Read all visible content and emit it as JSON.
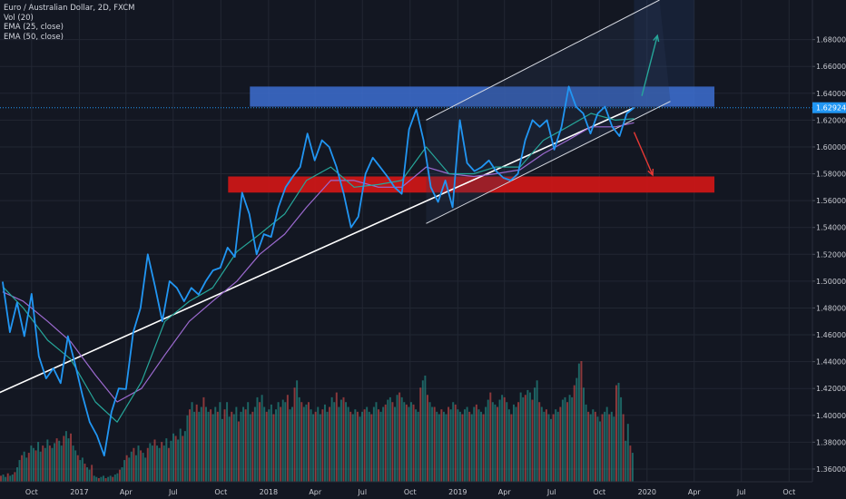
{
  "legend": {
    "symbol": "Euro / Australian Dollar, 2D, FXCM",
    "volume": "Vol (20)",
    "ema_fast": "EMA (25, close)",
    "ema_slow": "EMA (50, close)"
  },
  "last_price_label": "1.62924",
  "colors": {
    "background": "#131722",
    "price": "#2196f3",
    "ema_fast": "#26a69a",
    "ema_slow": "#9c6ad0",
    "trendline": "#ffffff",
    "resistance_zone": "#3d6fd1",
    "support_zone": "#d51616",
    "arrow_up": "#26a69a",
    "arrow_down": "#e53935",
    "vol_up": "#26a69a",
    "vol_down": "#ef5350",
    "axis_text": "#c8cad1"
  },
  "chart_data": {
    "type": "line",
    "title": "Euro / Australian Dollar, 2D, FXCM",
    "y_axis": {
      "ticks": [
        "1.68000",
        "1.66000",
        "1.64000",
        "1.62000",
        "1.60000",
        "1.58000",
        "1.56000",
        "1.54000",
        "1.52000",
        "1.50000",
        "1.48000",
        "1.46000",
        "1.44000",
        "1.42000",
        "1.40000",
        "1.38000",
        "1.36000"
      ],
      "range": [
        1.3505,
        1.7095
      ],
      "position": "right"
    },
    "x_axis": {
      "ticks": [
        "Oct",
        "2017",
        "Apr",
        "Jul",
        "Oct",
        "2018",
        "Apr",
        "Jul",
        "Oct",
        "2019",
        "Apr",
        "Jul",
        "Oct",
        "2020",
        "Apr",
        "Jul",
        "Oct"
      ],
      "range": [
        "2016-08-01",
        "2020-11-15"
      ]
    },
    "price_series": {
      "name": "EURAUD",
      "points": [
        [
          "2016-08-06",
          1.4996
        ],
        [
          "2016-08-20",
          1.462
        ],
        [
          "2016-09-03",
          1.484
        ],
        [
          "2016-09-17",
          1.459
        ],
        [
          "2016-10-01",
          1.4905
        ],
        [
          "2016-10-15",
          1.444
        ],
        [
          "2016-10-29",
          1.4275
        ],
        [
          "2016-11-12",
          1.435
        ],
        [
          "2016-11-26",
          1.424
        ],
        [
          "2016-12-10",
          1.459
        ],
        [
          "2016-12-24",
          1.438
        ],
        [
          "2017-01-07",
          1.415
        ],
        [
          "2017-01-21",
          1.395
        ],
        [
          "2017-02-04",
          1.385
        ],
        [
          "2017-02-18",
          1.37
        ],
        [
          "2017-03-04",
          1.4025
        ],
        [
          "2017-03-18",
          1.42
        ],
        [
          "2017-04-01",
          1.4195
        ],
        [
          "2017-04-15",
          1.462
        ],
        [
          "2017-04-29",
          1.48
        ],
        [
          "2017-05-13",
          1.52
        ],
        [
          "2017-05-27",
          1.496
        ],
        [
          "2017-06-10",
          1.47
        ],
        [
          "2017-06-24",
          1.5
        ],
        [
          "2017-07-08",
          1.495
        ],
        [
          "2017-07-22",
          1.485
        ],
        [
          "2017-08-05",
          1.495
        ],
        [
          "2017-08-19",
          1.49
        ],
        [
          "2017-09-02",
          1.5
        ],
        [
          "2017-09-16",
          1.508
        ],
        [
          "2017-09-30",
          1.51
        ],
        [
          "2017-10-14",
          1.525
        ],
        [
          "2017-10-28",
          1.518
        ],
        [
          "2017-11-11",
          1.566
        ],
        [
          "2017-11-25",
          1.55
        ],
        [
          "2017-12-09",
          1.52
        ],
        [
          "2017-12-23",
          1.535
        ],
        [
          "2018-01-06",
          1.533
        ],
        [
          "2018-01-20",
          1.555
        ],
        [
          "2018-02-03",
          1.57
        ],
        [
          "2018-02-17",
          1.578
        ],
        [
          "2018-03-03",
          1.585
        ],
        [
          "2018-03-17",
          1.61
        ],
        [
          "2018-03-31",
          1.59
        ],
        [
          "2018-04-14",
          1.605
        ],
        [
          "2018-04-28",
          1.6
        ],
        [
          "2018-05-12",
          1.585
        ],
        [
          "2018-05-26",
          1.565
        ],
        [
          "2018-06-09",
          1.54
        ],
        [
          "2018-06-23",
          1.548
        ],
        [
          "2018-07-07",
          1.58
        ],
        [
          "2018-07-21",
          1.592
        ],
        [
          "2018-08-04",
          1.585
        ],
        [
          "2018-08-18",
          1.578
        ],
        [
          "2018-09-01",
          1.57
        ],
        [
          "2018-09-15",
          1.565
        ],
        [
          "2018-09-29",
          1.613
        ],
        [
          "2018-10-13",
          1.628
        ],
        [
          "2018-10-27",
          1.605
        ],
        [
          "2018-11-10",
          1.57
        ],
        [
          "2018-11-24",
          1.559
        ],
        [
          "2018-12-08",
          1.575
        ],
        [
          "2018-12-22",
          1.555
        ],
        [
          "2019-01-05",
          1.62
        ],
        [
          "2019-01-19",
          1.588
        ],
        [
          "2019-02-02",
          1.582
        ],
        [
          "2019-02-16",
          1.585
        ],
        [
          "2019-03-02",
          1.59
        ],
        [
          "2019-03-16",
          1.582
        ],
        [
          "2019-03-30",
          1.577
        ],
        [
          "2019-04-13",
          1.575
        ],
        [
          "2019-04-27",
          1.58
        ],
        [
          "2019-05-11",
          1.605
        ],
        [
          "2019-05-25",
          1.62
        ],
        [
          "2019-06-08",
          1.615
        ],
        [
          "2019-06-22",
          1.62
        ],
        [
          "2019-07-06",
          1.598
        ],
        [
          "2019-07-20",
          1.615
        ],
        [
          "2019-08-03",
          1.645
        ],
        [
          "2019-08-17",
          1.63
        ],
        [
          "2019-08-31",
          1.625
        ],
        [
          "2019-09-14",
          1.61
        ],
        [
          "2019-09-28",
          1.625
        ],
        [
          "2019-10-12",
          1.63
        ],
        [
          "2019-10-26",
          1.615
        ],
        [
          "2019-11-09",
          1.608
        ],
        [
          "2019-11-23",
          1.625
        ],
        [
          "2019-12-07",
          1.6292
        ]
      ]
    },
    "ema_fast": {
      "name": "EMA (25, close)",
      "points": [
        [
          "2016-08-06",
          1.496
        ],
        [
          "2016-09-15",
          1.48
        ],
        [
          "2016-11-01",
          1.456
        ],
        [
          "2016-12-15",
          1.442
        ],
        [
          "2017-02-01",
          1.41
        ],
        [
          "2017-03-15",
          1.395
        ],
        [
          "2017-05-01",
          1.425
        ],
        [
          "2017-06-15",
          1.47
        ],
        [
          "2017-08-01",
          1.485
        ],
        [
          "2017-09-15",
          1.495
        ],
        [
          "2017-11-01",
          1.522
        ],
        [
          "2017-12-15",
          1.535
        ],
        [
          "2018-02-01",
          1.55
        ],
        [
          "2018-03-15",
          1.575
        ],
        [
          "2018-05-01",
          1.585
        ],
        [
          "2018-06-15",
          1.57
        ],
        [
          "2018-08-01",
          1.572
        ],
        [
          "2018-09-15",
          1.575
        ],
        [
          "2018-11-01",
          1.6
        ],
        [
          "2018-12-15",
          1.58
        ],
        [
          "2019-02-01",
          1.58
        ],
        [
          "2019-03-15",
          1.585
        ],
        [
          "2019-05-01",
          1.585
        ],
        [
          "2019-06-15",
          1.605
        ],
        [
          "2019-08-01",
          1.615
        ],
        [
          "2019-09-15",
          1.625
        ],
        [
          "2019-11-01",
          1.62
        ],
        [
          "2019-12-07",
          1.621
        ]
      ]
    },
    "ema_slow": {
      "name": "EMA (50, close)",
      "points": [
        [
          "2016-08-06",
          1.492
        ],
        [
          "2016-09-15",
          1.485
        ],
        [
          "2016-11-01",
          1.47
        ],
        [
          "2016-12-15",
          1.455
        ],
        [
          "2017-02-01",
          1.43
        ],
        [
          "2017-03-15",
          1.41
        ],
        [
          "2017-05-01",
          1.42
        ],
        [
          "2017-06-15",
          1.445
        ],
        [
          "2017-08-01",
          1.47
        ],
        [
          "2017-09-15",
          1.485
        ],
        [
          "2017-11-01",
          1.5
        ],
        [
          "2017-12-15",
          1.52
        ],
        [
          "2018-02-01",
          1.535
        ],
        [
          "2018-03-15",
          1.555
        ],
        [
          "2018-05-01",
          1.575
        ],
        [
          "2018-06-15",
          1.575
        ],
        [
          "2018-08-01",
          1.57
        ],
        [
          "2018-09-15",
          1.57
        ],
        [
          "2018-11-01",
          1.585
        ],
        [
          "2018-12-15",
          1.58
        ],
        [
          "2019-02-01",
          1.578
        ],
        [
          "2019-03-15",
          1.58
        ],
        [
          "2019-05-01",
          1.583
        ],
        [
          "2019-06-15",
          1.595
        ],
        [
          "2019-08-01",
          1.605
        ],
        [
          "2019-09-15",
          1.615
        ],
        [
          "2019-11-01",
          1.615
        ],
        [
          "2019-12-07",
          1.618
        ]
      ]
    },
    "volume_bars": {
      "name": "Vol (20)",
      "relative_heights": [
        0.05,
        0.06,
        0.04,
        0.07,
        0.05,
        0.06,
        0.08,
        0.12,
        0.18,
        0.22,
        0.25,
        0.2,
        0.24,
        0.3,
        0.28,
        0.26,
        0.33,
        0.25,
        0.3,
        0.28,
        0.35,
        0.3,
        0.28,
        0.32,
        0.36,
        0.34,
        0.3,
        0.38,
        0.42,
        0.36,
        0.4,
        0.3,
        0.26,
        0.22,
        0.18,
        0.2,
        0.15,
        0.12,
        0.1,
        0.14,
        0.05,
        0.04,
        0.03,
        0.04,
        0.05,
        0.03,
        0.04,
        0.05,
        0.04,
        0.06,
        0.07,
        0.1,
        0.12,
        0.18,
        0.22,
        0.2,
        0.25,
        0.28,
        0.22,
        0.3,
        0.26,
        0.24,
        0.2,
        0.28,
        0.32,
        0.3,
        0.35,
        0.3,
        0.28,
        0.33,
        0.3,
        0.36,
        0.28,
        0.34,
        0.4,
        0.38,
        0.35,
        0.44,
        0.38,
        0.42,
        0.55,
        0.6,
        0.66,
        0.58,
        0.64,
        0.58,
        0.62,
        0.7,
        0.62,
        0.58,
        0.6,
        0.56,
        0.62,
        0.58,
        0.66,
        0.52,
        0.6,
        0.66,
        0.54,
        0.58,
        0.56,
        0.62,
        0.5,
        0.58,
        0.62,
        0.6,
        0.66,
        0.56,
        0.58,
        0.62,
        0.7,
        0.66,
        0.72,
        0.62,
        0.58,
        0.6,
        0.64,
        0.56,
        0.6,
        0.66,
        0.62,
        0.68,
        0.66,
        0.72,
        0.6,
        0.62,
        0.78,
        0.84,
        0.7,
        0.66,
        0.62,
        0.64,
        0.66,
        0.6,
        0.56,
        0.58,
        0.62,
        0.56,
        0.6,
        0.64,
        0.58,
        0.62,
        0.7,
        0.66,
        0.74,
        0.62,
        0.68,
        0.7,
        0.66,
        0.62,
        0.58,
        0.56,
        0.6,
        0.58,
        0.54,
        0.58,
        0.6,
        0.62,
        0.58,
        0.56,
        0.62,
        0.66,
        0.6,
        0.58,
        0.62,
        0.64,
        0.68,
        0.7,
        0.66,
        0.62,
        0.72,
        0.74,
        0.7,
        0.66,
        0.64,
        0.62,
        0.66,
        0.64,
        0.6,
        0.58,
        0.78,
        0.84,
        0.88,
        0.72,
        0.66,
        0.62,
        0.62,
        0.58,
        0.56,
        0.6,
        0.58,
        0.56,
        0.62,
        0.6,
        0.66,
        0.64,
        0.6,
        0.58,
        0.56,
        0.6,
        0.62,
        0.58,
        0.56,
        0.62,
        0.64,
        0.6,
        0.58,
        0.56,
        0.62,
        0.68,
        0.74,
        0.66,
        0.64,
        0.62,
        0.68,
        0.72,
        0.7,
        0.66,
        0.6,
        0.56,
        0.64,
        0.62,
        0.66,
        0.74,
        0.7,
        0.72,
        0.76,
        0.74,
        0.68,
        0.78,
        0.84,
        0.66,
        0.62,
        0.58,
        0.6,
        0.56,
        0.52,
        0.56,
        0.6,
        0.58,
        0.62,
        0.68,
        0.7,
        0.66,
        0.72,
        0.7,
        0.8,
        0.86,
        0.98,
        1.0,
        0.78,
        0.64,
        0.58,
        0.56,
        0.6,
        0.58,
        0.54,
        0.5,
        0.56,
        0.58,
        0.62,
        0.56,
        0.58,
        0.54,
        0.8,
        0.82,
        0.7,
        0.56,
        0.34,
        0.48,
        0.3,
        0.24
      ]
    },
    "drawings": {
      "main_trendline": [
        [
          "2016-07-20",
          1.415
        ],
        [
          "2019-12-07",
          1.6292
        ]
      ],
      "channel_upper": [
        [
          "2018-11-01",
          1.62
        ],
        [
          "2020-01-25",
          1.7095
        ]
      ],
      "channel_lower": [
        [
          "2018-11-01",
          1.543
        ],
        [
          "2020-02-15",
          1.634
        ]
      ],
      "resistance_zone": {
        "from": "2017-11-26",
        "to": "2020-05-10",
        "low": 1.63,
        "high": 1.645
      },
      "support_zone": {
        "from": "2017-10-15",
        "to": "2020-05-10",
        "low": 1.566,
        "high": 1.578
      },
      "projection_box": {
        "from": "2019-12-07",
        "to": "2020-04-01",
        "low": 1.63,
        "high": 1.7095
      },
      "arrow_up": [
        [
          "2019-12-22",
          1.638
        ],
        [
          "2020-01-21",
          1.683
        ]
      ],
      "arrow_down": [
        [
          "2019-12-07",
          1.611
        ],
        [
          "2020-01-12",
          1.579
        ]
      ]
    }
  }
}
